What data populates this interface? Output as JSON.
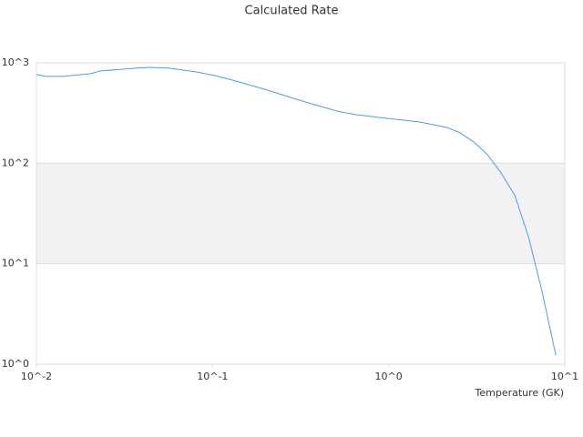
{
  "chart_data": {
    "type": "line",
    "title": "Calculated Rate",
    "x_label": "Temperature (GK)",
    "x": [
      0.01,
      0.01126,
      0.0143,
      0.0204,
      0.023,
      0.037,
      0.0443,
      0.0562,
      0.0804,
      0.102,
      0.129,
      0.196,
      0.298,
      0.378,
      0.509,
      0.646,
      0.98,
      1.49,
      2.13,
      2.55,
      3.04,
      3.64,
      4.35,
      5.2,
      6.22,
      7.43,
      8.89
    ],
    "series": [
      {
        "color": "#4e9de0",
        "values": [
          764,
          733,
          733,
          780,
          830,
          884,
          902,
          884,
          813,
          748,
          675,
          547,
          435,
          384,
          331,
          305,
          280,
          258,
          228,
          201,
          163,
          122,
          80,
          48,
          18.6,
          5.3,
          1.23
        ]
      }
    ],
    "xlim": [
      0.01,
      10
    ],
    "ylim": [
      1,
      1000
    ],
    "xlog": true,
    "ylog": true,
    "xticks": [
      {
        "value": 0.01,
        "label": "10^-2"
      },
      {
        "value": 0.1,
        "label": "10^-1"
      },
      {
        "value": 1,
        "label": "10^0"
      },
      {
        "value": 10,
        "label": "10^1"
      }
    ],
    "yticks": [
      {
        "value": 1,
        "label": "10^0"
      },
      {
        "value": 10,
        "label": "10^1"
      },
      {
        "value": 100,
        "label": "10^2"
      },
      {
        "value": 1000,
        "label": "10^3"
      }
    ],
    "grid": true,
    "band_color": "#f2f2f2"
  }
}
